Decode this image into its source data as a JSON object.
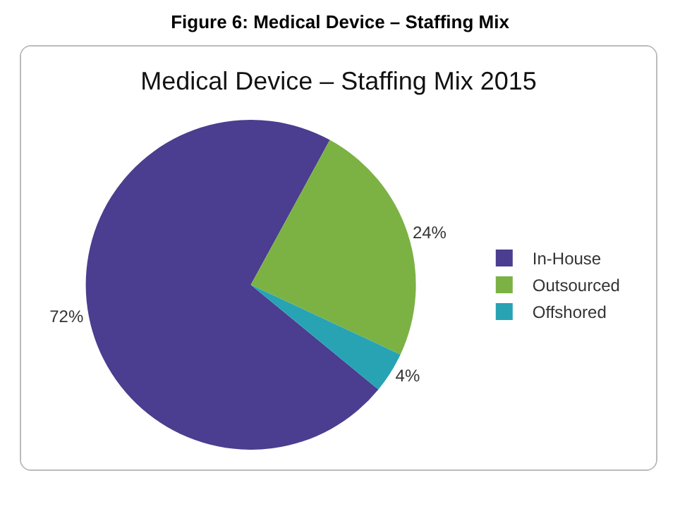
{
  "chart_data": {
    "type": "pie",
    "title": "Figure 6: Medical Device – Staffing Mix",
    "subtitle": "Medical Device – Staffing Mix 2015",
    "categories": [
      "In-House",
      "Outsourced",
      "Offshored"
    ],
    "values": [
      72,
      24,
      4
    ],
    "colors": [
      "#4b3d8f",
      "#7bb243",
      "#27a3b4"
    ],
    "value_labels": [
      "72%",
      "24%",
      "4%"
    ],
    "legend": "right"
  }
}
